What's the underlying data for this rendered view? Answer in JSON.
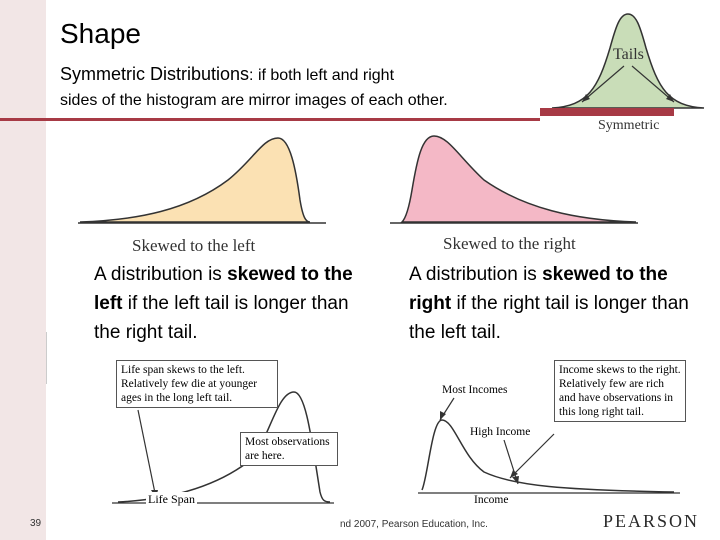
{
  "slide": {
    "title": "Shape",
    "subtitle_bold": "Symmetric Distributions",
    "subtitle_rest": ": if both left and right",
    "subtitle_line2": "sides of the histogram are mirror images of each other.",
    "page_number": "39",
    "copyright": "nd 2007, Pearson Education, Inc.",
    "publisher": "PEARSON"
  },
  "symmetric_figure": {
    "tails_label": "Tails",
    "caption": "Symmetric"
  },
  "left_skew": {
    "caption": "Skewed to the left",
    "text_pre": "A distribution is ",
    "text_bold": "skewed to the left",
    "text_post": " if the left tail is longer than the right tail."
  },
  "right_skew": {
    "caption": "Skewed to the right",
    "text_pre": "A distribution is ",
    "text_bold": "skewed to the right",
    "text_post": " if the right tail is longer than the left tail."
  },
  "life_span_figure": {
    "note_top": "Life span skews to the left. Relatively few die at younger ages in the long left tail.",
    "note_mid": "Most observations are here.",
    "axis_label": "Life Span"
  },
  "income_figure": {
    "note_top": "Income skews to the right. Relatively few are rich and have observations in this long right tail.",
    "label_most": "Most Incomes",
    "label_high": "High Income",
    "axis_label": "Income"
  },
  "colors": {
    "accent": "#a73a45",
    "left_fill": "#fbe1b3",
    "right_fill": "#f4b8c6",
    "sym_fill": "#c9ddb8"
  }
}
